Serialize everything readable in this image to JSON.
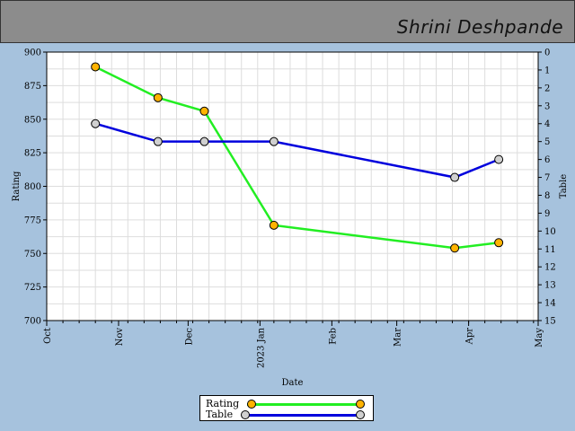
{
  "header": {
    "name": "Shrini Deshpande"
  },
  "legend": {
    "rating_label": "Rating",
    "table_label": "Table"
  },
  "colors": {
    "rating_line": "#22ee22",
    "rating_marker": "#ffb300",
    "table_line": "#0000dd",
    "table_marker": "#d0d0d0",
    "background": "#a6c2dd",
    "header": "#8c8c8c",
    "plot": "#ffffff",
    "grid": "#dddddd"
  },
  "chart_data": {
    "type": "line",
    "xlabel": "Date",
    "ylabel": "Rating",
    "y2label": "Table",
    "x_ticks": [
      "Oct",
      "Nov",
      "Dec",
      "2023 Jan",
      "Feb",
      "Mar",
      "Apr",
      "May"
    ],
    "x_range": [
      "2022-10-01",
      "2023-05-01"
    ],
    "ylim": [
      700,
      900
    ],
    "y_ticks": [
      700,
      725,
      750,
      775,
      800,
      825,
      850,
      875,
      900
    ],
    "y2lim": [
      15,
      0
    ],
    "y2_ticks": [
      0,
      1,
      2,
      3,
      4,
      5,
      6,
      7,
      8,
      9,
      10,
      11,
      12,
      13,
      14,
      15
    ],
    "grid": true,
    "legend_position": "bottom-center",
    "series": [
      {
        "name": "Rating",
        "axis": "left",
        "x": [
          "2022-10-22",
          "2022-11-18",
          "2022-12-08",
          "2023-01-07",
          "2023-03-26",
          "2023-04-14"
        ],
        "values": [
          889,
          866,
          856,
          771,
          754,
          758
        ]
      },
      {
        "name": "Table",
        "axis": "right",
        "x": [
          "2022-10-22",
          "2022-11-18",
          "2022-12-08",
          "2023-01-07",
          "2023-03-26",
          "2023-04-14"
        ],
        "values": [
          4,
          5,
          5,
          5,
          7,
          6
        ]
      }
    ]
  }
}
